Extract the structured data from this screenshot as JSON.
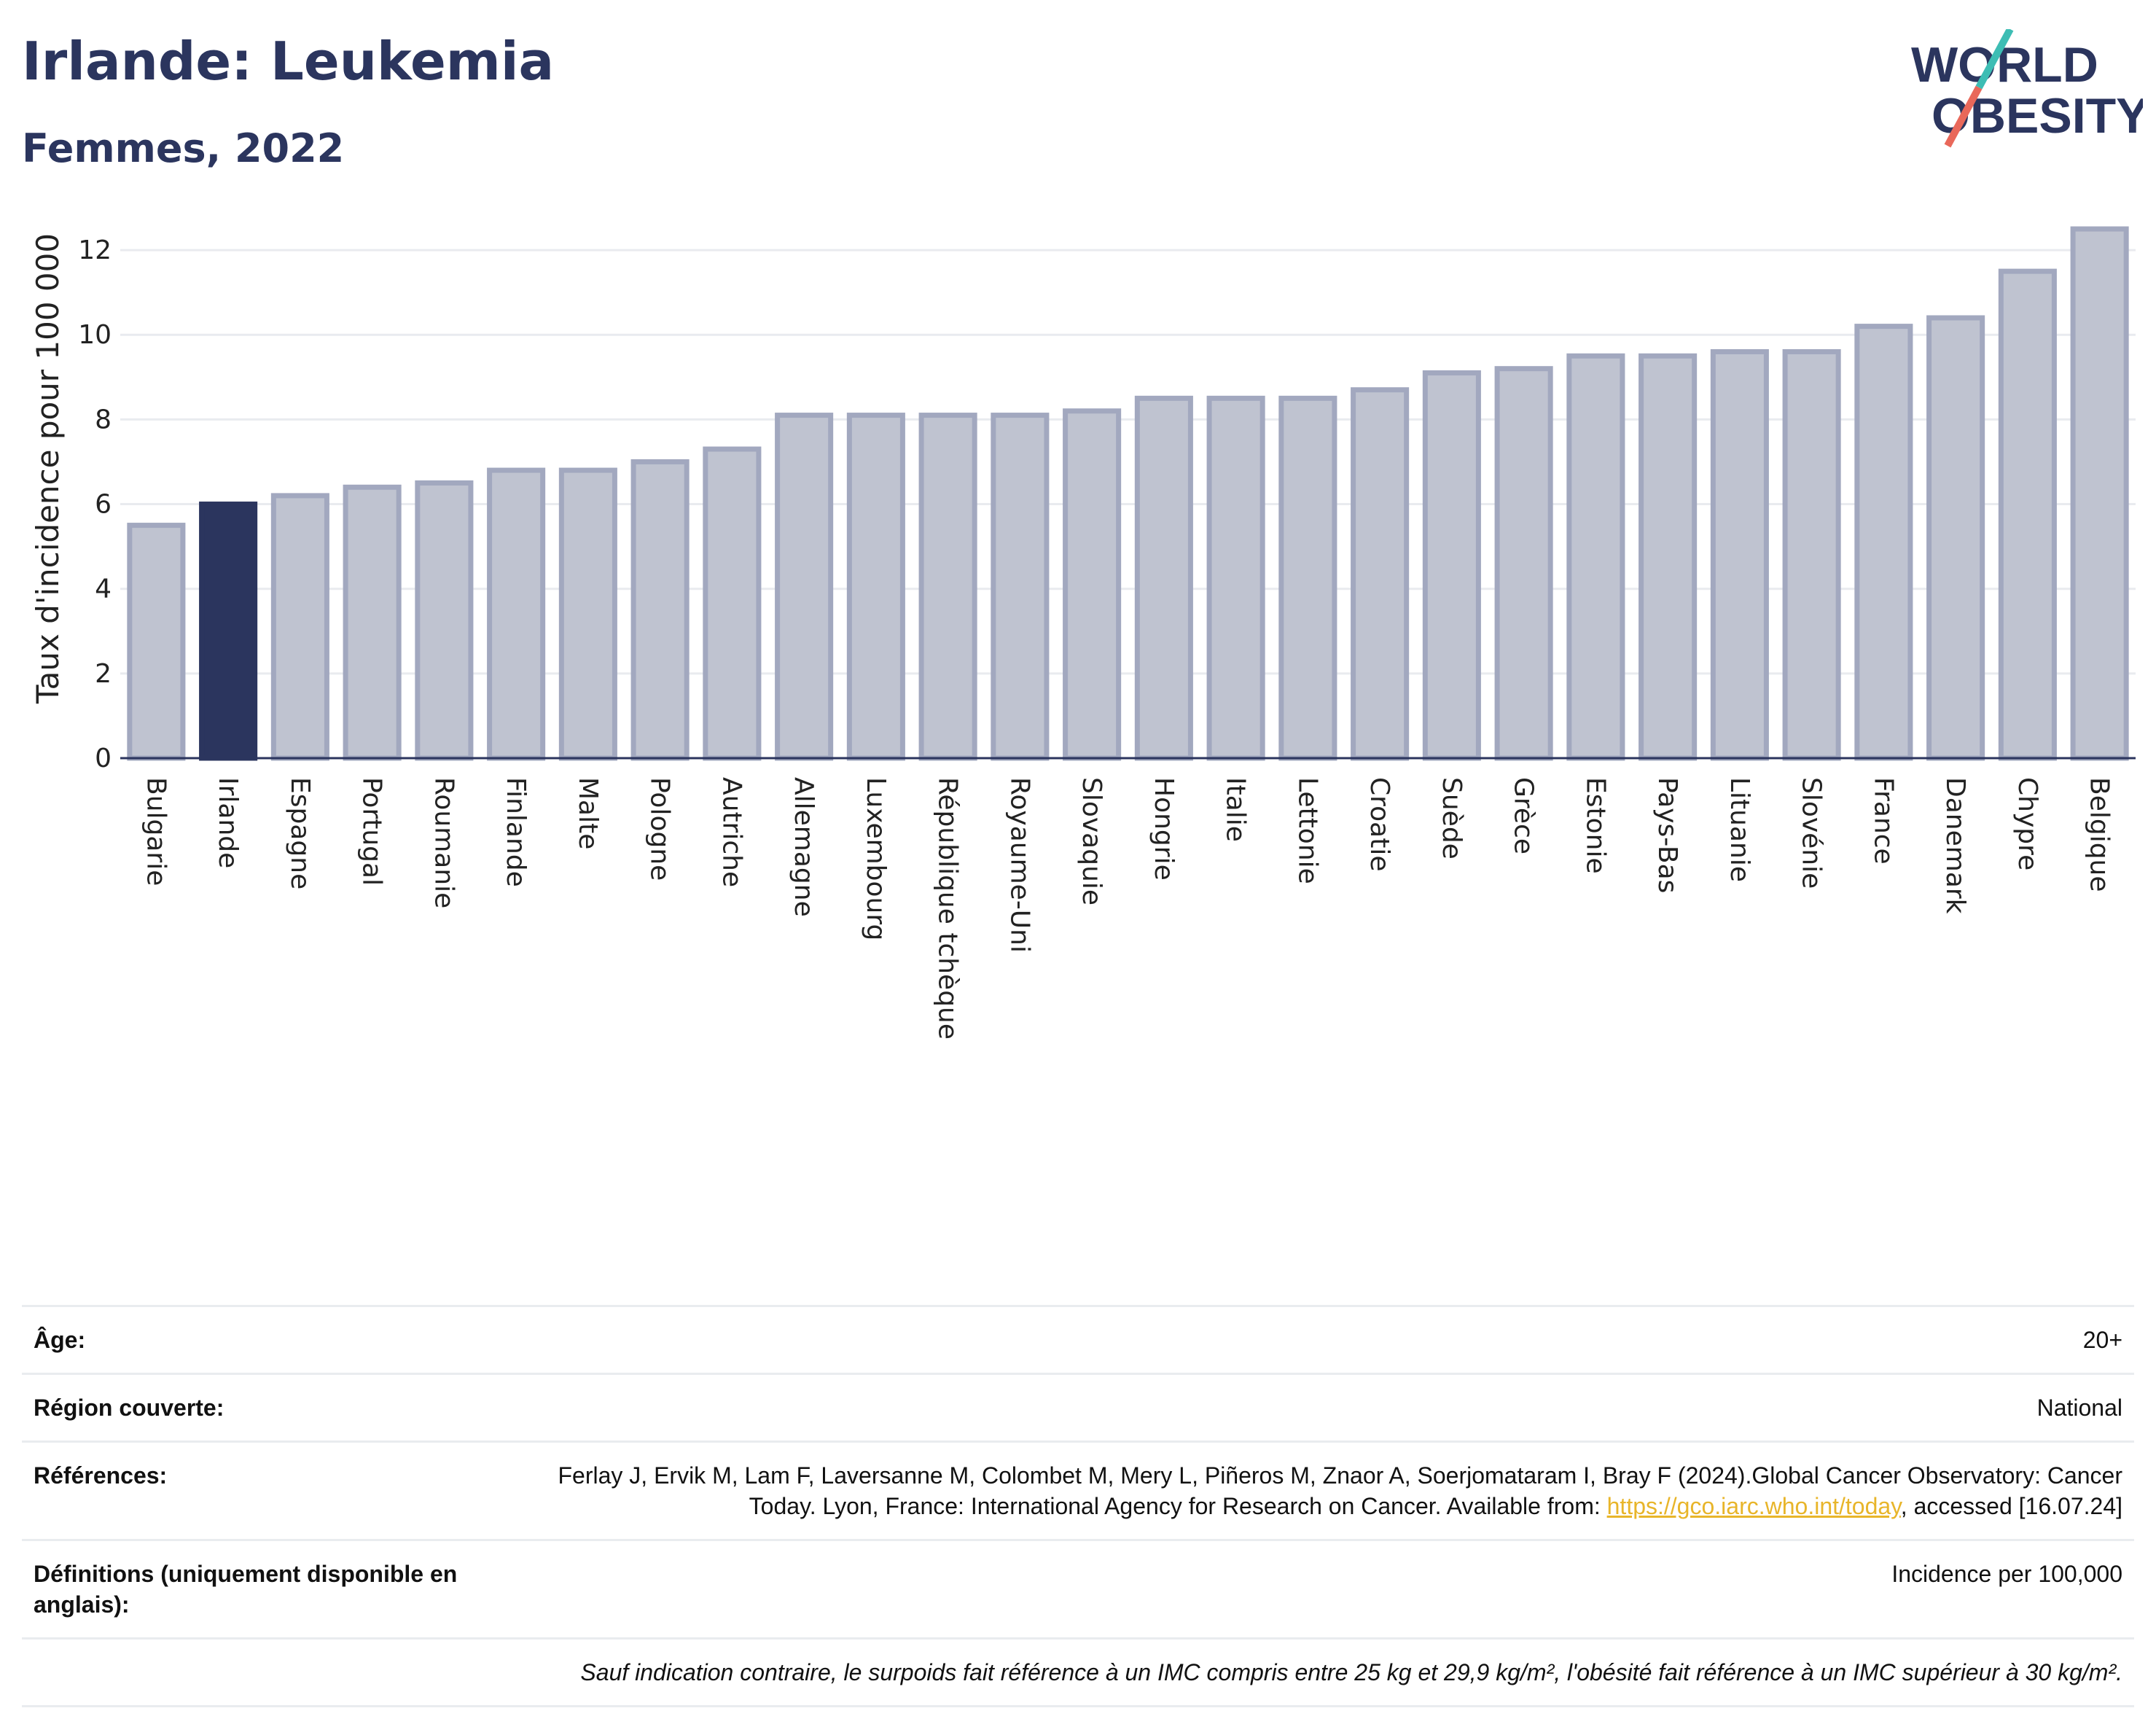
{
  "header": {
    "title": "Irlande: Leukemia",
    "subtitle": "Femmes, 2022"
  },
  "logo": {
    "line1": "WORLD",
    "line2": "OBESITY"
  },
  "chart_data": {
    "type": "bar",
    "ylabel": "Taux d'incidence pour 100 000",
    "ylim": [
      0,
      13
    ],
    "yticks": [
      0,
      2,
      4,
      6,
      8,
      10,
      12
    ],
    "categories": [
      "Bulgarie",
      "Irlande",
      "Espagne",
      "Portugal",
      "Roumanie",
      "Finlande",
      "Malte",
      "Pologne",
      "Autriche",
      "Allemagne",
      "Luxembourg",
      "République tchèque",
      "Royaume-Uni",
      "Slovaquie",
      "Hongrie",
      "Italie",
      "Lettonie",
      "Croatie",
      "Suède",
      "Grèce",
      "Estonie",
      "Pays-Bas",
      "Lituanie",
      "Slovénie",
      "France",
      "Danemark",
      "Chypre",
      "Belgique"
    ],
    "values": [
      5.5,
      6.0,
      6.2,
      6.4,
      6.5,
      6.8,
      6.8,
      7.0,
      7.3,
      8.1,
      8.1,
      8.1,
      8.1,
      8.2,
      8.5,
      8.5,
      8.5,
      8.7,
      9.1,
      9.2,
      9.5,
      9.5,
      9.6,
      9.6,
      10.2,
      10.4,
      11.5,
      12.5
    ],
    "highlight": "Irlande",
    "colors": {
      "bar": "#bfc3d0",
      "bar_border": "#a2a8bf",
      "highlight": "#2b355e",
      "grid": "#e9ebef",
      "axis": "#2b355e"
    },
    "grid": true
  },
  "info": {
    "age_label": "Âge:",
    "age_value": "20+",
    "region_label": "Région couverte:",
    "region_value": "National",
    "references_label": "Références:",
    "references_text": "Ferlay J, Ervik M, Lam F, Laversanne M, Colombet M, Mery L, Piñeros M, Znaor A, Soerjomataram I, Bray F (2024).Global Cancer Observatory: Cancer Today. Lyon, France: International Agency for Research on Cancer. Available from: ",
    "references_link": "https://gco.iarc.who.int/today",
    "references_suffix": ", accessed [16.07.24]",
    "definitions_label": "Définitions (uniquement disponible en anglais):",
    "definitions_value": "Incidence per 100,000",
    "note": "Sauf indication contraire, le surpoids fait référence à un IMC compris entre 25 kg et 29,9 kg/m², l'obésité fait référence à un IMC supérieur à 30 kg/m²."
  }
}
